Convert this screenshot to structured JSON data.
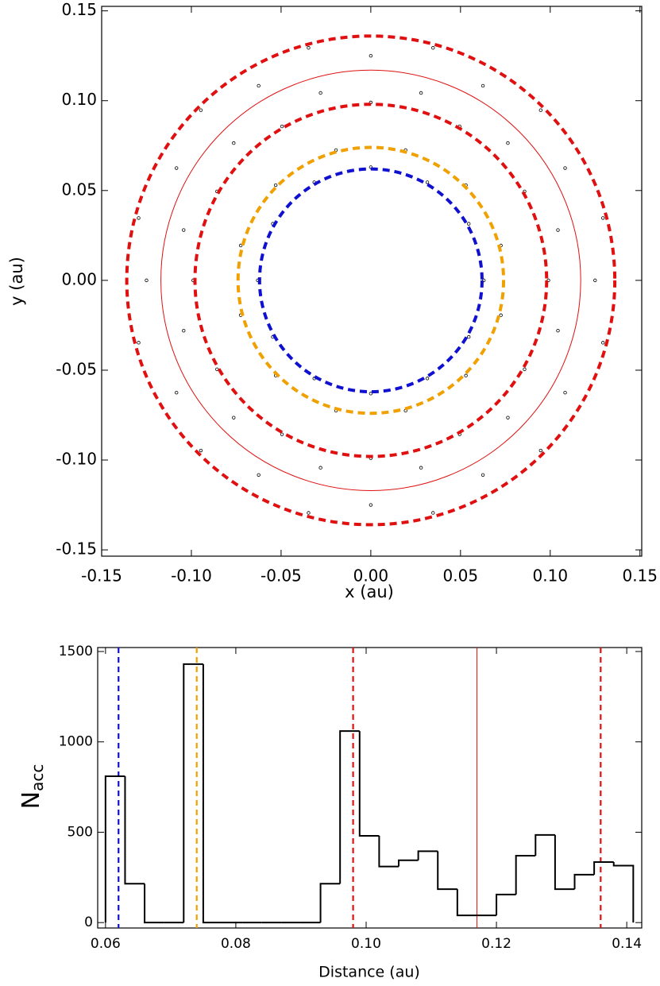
{
  "chart_data": [
    {
      "type": "scatter",
      "xlabel": "x (au)",
      "ylabel": "y (au)",
      "xlim": [
        -0.15,
        0.151
      ],
      "ylim": [
        -0.1535,
        0.1525
      ],
      "xticks": [
        -0.15,
        {
          "value": -0.1,
          "label": "-0.10"
        },
        -0.05,
        {
          "value": 0,
          "label": "0.00"
        },
        0.05,
        {
          "value": 0.1,
          "label": "0.10"
        },
        0.15
      ],
      "yticks": [
        -0.15,
        {
          "value": -0.1,
          "label": "-0.10"
        },
        -0.05,
        {
          "value": 0,
          "label": "0.00"
        },
        0.05,
        {
          "value": 0.1,
          "label": "0.10"
        },
        0.15
      ],
      "point_color": "#000000",
      "x": [
        0.063,
        0.0546,
        0.0315,
        0,
        -0.0315,
        -0.0546,
        -0.063,
        -0.0546,
        -0.0315,
        0,
        0.0315,
        0.0546,
        0.0725,
        0.053,
        0.0194,
        -0.0194,
        -0.053,
        -0.0725,
        -0.0725,
        -0.053,
        -0.0194,
        0.0194,
        0.053,
        0.0725,
        0.099,
        0.0857,
        0.0495,
        0,
        -0.0495,
        -0.0857,
        -0.099,
        -0.0857,
        -0.0495,
        0,
        0.0495,
        0.0857,
        0.1043,
        0.0764,
        0.028,
        -0.028,
        -0.0764,
        -0.1043,
        -0.1043,
        -0.0764,
        -0.028,
        0.028,
        0.0764,
        0.1043,
        0.125,
        0.1083,
        0.0625,
        0,
        -0.0625,
        -0.1083,
        -0.125,
        -0.1083,
        -0.0625,
        0,
        0.0625,
        0.1083,
        0.1294,
        0.0947,
        0.0347,
        -0.0347,
        -0.0947,
        -0.1294,
        -0.1294,
        -0.0947,
        -0.0347,
        0.0347,
        0.0947,
        0.1294
      ],
      "y": [
        0,
        0.0315,
        0.0546,
        0.063,
        0.0546,
        0.0315,
        0,
        -0.0315,
        -0.0546,
        -0.063,
        -0.0546,
        -0.0315,
        0.0194,
        0.053,
        0.0725,
        0.0725,
        0.053,
        0.0194,
        -0.0194,
        -0.053,
        -0.0725,
        -0.0725,
        -0.053,
        -0.0194,
        0,
        0.0495,
        0.0857,
        0.099,
        0.0857,
        0.0495,
        0,
        -0.0495,
        -0.0857,
        -0.099,
        -0.0857,
        -0.0495,
        0.028,
        0.0764,
        0.1043,
        0.1043,
        0.0764,
        0.028,
        -0.028,
        -0.0764,
        -0.1043,
        -0.1043,
        -0.0764,
        -0.028,
        0,
        0.0625,
        0.1083,
        0.125,
        0.1083,
        0.0625,
        0,
        -0.0625,
        -0.1083,
        -0.125,
        -0.1083,
        -0.0625,
        0.0347,
        0.0947,
        0.1294,
        0.1294,
        0.0947,
        0.0347,
        -0.0347,
        -0.0947,
        -0.1294,
        -0.1294,
        -0.0947,
        -0.0347
      ],
      "circles": [
        {
          "radius": 0.062,
          "color": "#1010d0",
          "style": "dashed"
        },
        {
          "radius": 0.074,
          "color": "#f0a000",
          "style": "dashed"
        },
        {
          "radius": 0.098,
          "color": "#e01010",
          "style": "dashed"
        },
        {
          "radius": 0.117,
          "color": "#e01010",
          "style": "solid"
        },
        {
          "radius": 0.136,
          "color": "#e01010",
          "style": "dashed"
        }
      ]
    },
    {
      "type": "histogram",
      "xlabel": "Distance (au)",
      "ylabel": "N",
      "ylabel_sub": "acc",
      "xlim": [
        0.0588,
        0.1423
      ],
      "ylim": [
        -30,
        1522
      ],
      "xticks": [
        0.06,
        0.08,
        {
          "value": 0.1,
          "label": "0.10"
        },
        0.12,
        0.14
      ],
      "yticks": [
        0,
        500,
        1000,
        1500
      ],
      "color": "#000000",
      "bins": [
        0.06,
        0.063,
        0.066,
        0.069,
        0.072,
        0.075,
        0.078,
        0.081,
        0.084,
        0.087,
        0.09,
        0.093,
        0.096,
        0.099,
        0.102,
        0.105,
        0.108,
        0.111,
        0.114,
        0.117,
        0.12,
        0.123,
        0.126,
        0.129,
        0.132,
        0.135,
        0.138,
        0.141
      ],
      "values": [
        810,
        215,
        0,
        0,
        1430,
        0,
        0,
        0,
        0,
        0,
        0,
        215,
        1060,
        480,
        310,
        345,
        395,
        185,
        40,
        40,
        155,
        370,
        485,
        185,
        265,
        335,
        315
      ],
      "vlines": [
        {
          "x": 0.062,
          "color": "#1010d0",
          "style": "dashed"
        },
        {
          "x": 0.074,
          "color": "#f0a000",
          "style": "dashed"
        },
        {
          "x": 0.098,
          "color": "#e01010",
          "style": "dashed"
        },
        {
          "x": 0.117,
          "color": "#e01010",
          "style": "solid"
        },
        {
          "x": 0.136,
          "color": "#e01010",
          "style": "dashed"
        }
      ]
    }
  ]
}
